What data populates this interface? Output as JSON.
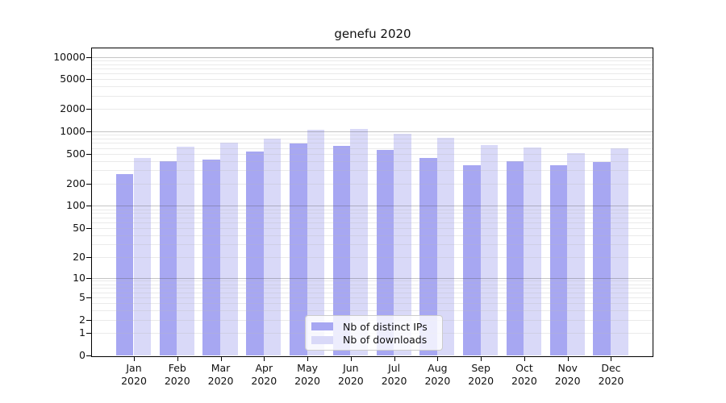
{
  "chart_data": {
    "type": "bar",
    "title": "genefu 2020",
    "categories": [
      "Jan\n2020",
      "Feb\n2020",
      "Mar\n2020",
      "Apr\n2020",
      "May\n2020",
      "Jun\n2020",
      "Jul\n2020",
      "Aug\n2020",
      "Sep\n2020",
      "Oct\n2020",
      "Nov\n2020",
      "Dec\n2020"
    ],
    "series": [
      {
        "name": "Nb of distinct IPs",
        "color": "#a7a7f2",
        "values": [
          268,
          397,
          419,
          535,
          694,
          639,
          562,
          439,
          349,
          397,
          355,
          390
        ]
      },
      {
        "name": "Nb of downloads",
        "color": "#d9d9f8",
        "values": [
          443,
          631,
          717,
          801,
          1063,
          1089,
          924,
          816,
          661,
          609,
          508,
          589
        ]
      }
    ],
    "y_ticks": [
      0,
      1,
      2,
      5,
      10,
      20,
      50,
      100,
      200,
      500,
      1000,
      2000,
      5000,
      10000
    ],
    "y_scale": "log1p",
    "ylim": [
      0,
      12600
    ],
    "xlabel": "",
    "ylabel": "",
    "grid": "horizontal, minor and major log lines",
    "legend_position": "inside lower-center"
  },
  "colors": {
    "axis": "#000000",
    "grid_major": "#c8c8c8",
    "grid_minor": "#e8e8e8",
    "legend_border": "#cccccc",
    "legend_background": "rgba(255,255,255,0.8)"
  }
}
